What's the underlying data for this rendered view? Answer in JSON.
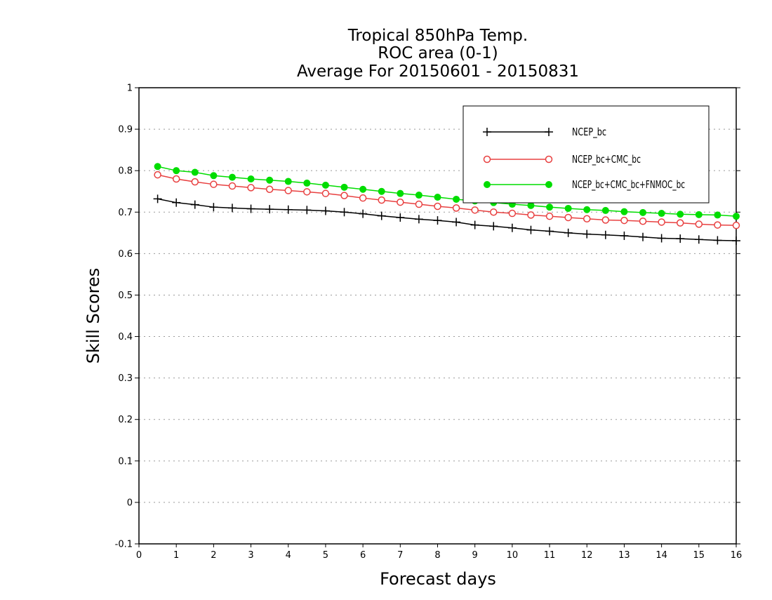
{
  "chart_data": {
    "type": "line",
    "title_lines": [
      "Tropical 850hPa Temp.",
      "ROC area (0-1)",
      "Average For 20150601 - 20150831"
    ],
    "xlabel": "Forecast days",
    "ylabel": "Skill Scores",
    "xlim": [
      0,
      16
    ],
    "ylim": [
      -0.1,
      1
    ],
    "x_ticks": [
      0,
      1,
      2,
      3,
      4,
      5,
      6,
      7,
      8,
      9,
      10,
      11,
      12,
      13,
      14,
      15,
      16
    ],
    "x_tick_labels": [
      "0",
      "1",
      "2",
      "3",
      "4",
      "5",
      "6",
      "7",
      "8",
      "9",
      "10",
      "11",
      "12",
      "13",
      "14",
      "15",
      "16"
    ],
    "y_ticks": [
      -0.1,
      0,
      0.1,
      0.2,
      0.3,
      0.4,
      0.5,
      0.6,
      0.7,
      0.8,
      0.9,
      1
    ],
    "y_tick_labels": [
      "-0.1",
      "0",
      "0.1",
      "0.2",
      "0.3",
      "0.4",
      "0.5",
      "0.6",
      "0.7",
      "0.8",
      "0.9",
      "1"
    ],
    "grid": "horizontal dotted",
    "legend_position": "top-right",
    "x": [
      0.5,
      1,
      1.5,
      2,
      2.5,
      3,
      3.5,
      4,
      4.5,
      5,
      5.5,
      6,
      6.5,
      7,
      7.5,
      8,
      8.5,
      9,
      9.5,
      10,
      10.5,
      11,
      11.5,
      12,
      12.5,
      13,
      13.5,
      14,
      14.5,
      15,
      15.5,
      16
    ],
    "series": [
      {
        "name": "NCEP_bc",
        "color": "#000000",
        "marker": "plus",
        "values": [
          0.732,
          0.723,
          0.718,
          0.712,
          0.71,
          0.708,
          0.707,
          0.706,
          0.705,
          0.703,
          0.7,
          0.696,
          0.691,
          0.687,
          0.683,
          0.68,
          0.676,
          0.669,
          0.666,
          0.662,
          0.657,
          0.654,
          0.65,
          0.647,
          0.645,
          0.643,
          0.64,
          0.637,
          0.636,
          0.634,
          0.632,
          0.631
        ]
      },
      {
        "name": "NCEP_bc+CMC_bc",
        "color": "#e84040",
        "marker": "open-circle",
        "values": [
          0.79,
          0.78,
          0.773,
          0.767,
          0.763,
          0.759,
          0.755,
          0.752,
          0.749,
          0.745,
          0.74,
          0.734,
          0.729,
          0.724,
          0.719,
          0.714,
          0.71,
          0.705,
          0.7,
          0.697,
          0.693,
          0.69,
          0.687,
          0.684,
          0.681,
          0.68,
          0.678,
          0.676,
          0.674,
          0.671,
          0.669,
          0.668
        ]
      },
      {
        "name": "NCEP_bc+CMC_bc+FNMOC_bc",
        "color": "#00dd00",
        "marker": "filled-circle",
        "values": [
          0.81,
          0.8,
          0.796,
          0.788,
          0.784,
          0.78,
          0.777,
          0.774,
          0.77,
          0.765,
          0.76,
          0.755,
          0.75,
          0.745,
          0.741,
          0.736,
          0.731,
          0.727,
          0.723,
          0.719,
          0.716,
          0.712,
          0.709,
          0.706,
          0.704,
          0.701,
          0.699,
          0.697,
          0.695,
          0.694,
          0.693,
          0.69
        ]
      }
    ]
  }
}
